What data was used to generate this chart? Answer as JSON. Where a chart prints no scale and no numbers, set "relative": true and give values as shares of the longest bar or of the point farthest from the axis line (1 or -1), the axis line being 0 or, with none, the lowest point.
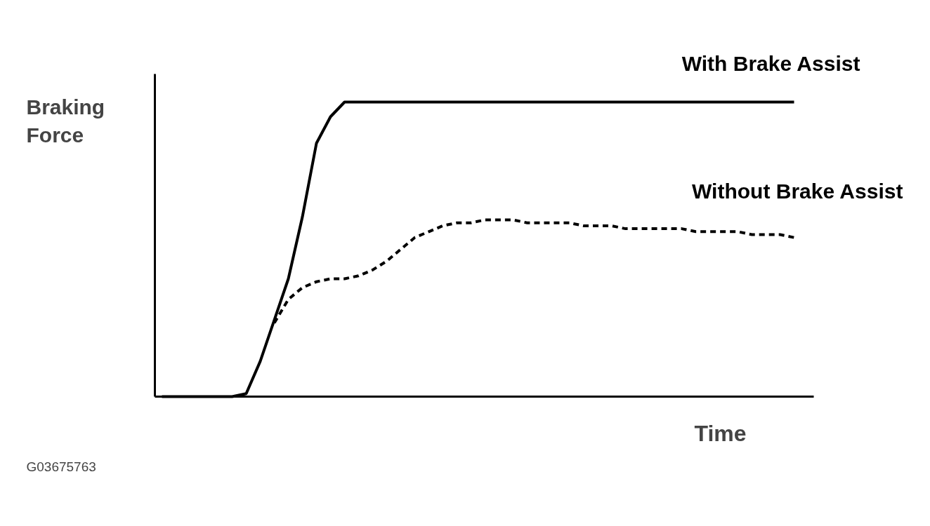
{
  "chart_data": {
    "type": "line",
    "relative": true,
    "xlabel": "Time",
    "ylabel": "Braking Force",
    "annotations": [
      "G03675763"
    ],
    "tick_labels": false,
    "categories": [
      null,
      null,
      null,
      null,
      null,
      null,
      null,
      null,
      null,
      null,
      null,
      null,
      null,
      null,
      null,
      null,
      null,
      null,
      null,
      null,
      null,
      null,
      null,
      null,
      null,
      null,
      null,
      null,
      null,
      null,
      null,
      null,
      null,
      null,
      null,
      null,
      null,
      null,
      null,
      null,
      null,
      null,
      null,
      null,
      null,
      null
    ],
    "series": [
      {
        "name": "With Brake Assist",
        "color": "#000000",
        "line_style": "solid",
        "values": [
          0,
          0,
          0,
          0,
          0,
          0,
          0.01,
          0.12,
          0.26,
          0.4,
          0.61,
          0.86,
          0.95,
          1,
          1,
          1,
          1,
          1,
          1,
          1,
          1,
          1,
          1,
          1,
          1,
          1,
          1,
          1,
          1,
          1,
          1,
          1,
          1,
          1,
          1,
          1,
          1,
          1,
          1,
          1,
          1,
          1,
          1,
          1,
          1,
          1
        ]
      },
      {
        "name": "Without Brake Assist",
        "color": "#000000",
        "line_style": "dashed",
        "values": [
          null,
          null,
          null,
          null,
          null,
          null,
          null,
          null,
          0.25,
          0.33,
          0.37,
          0.39,
          0.4,
          0.4,
          0.41,
          0.43,
          0.46,
          0.5,
          0.54,
          0.56,
          0.58,
          0.59,
          0.59,
          0.6,
          0.6,
          0.6,
          0.59,
          0.59,
          0.59,
          0.59,
          0.58,
          0.58,
          0.58,
          0.57,
          0.57,
          0.57,
          0.57,
          0.57,
          0.56,
          0.56,
          0.56,
          0.56,
          0.55,
          0.55,
          0.55,
          0.54
        ]
      }
    ]
  }
}
